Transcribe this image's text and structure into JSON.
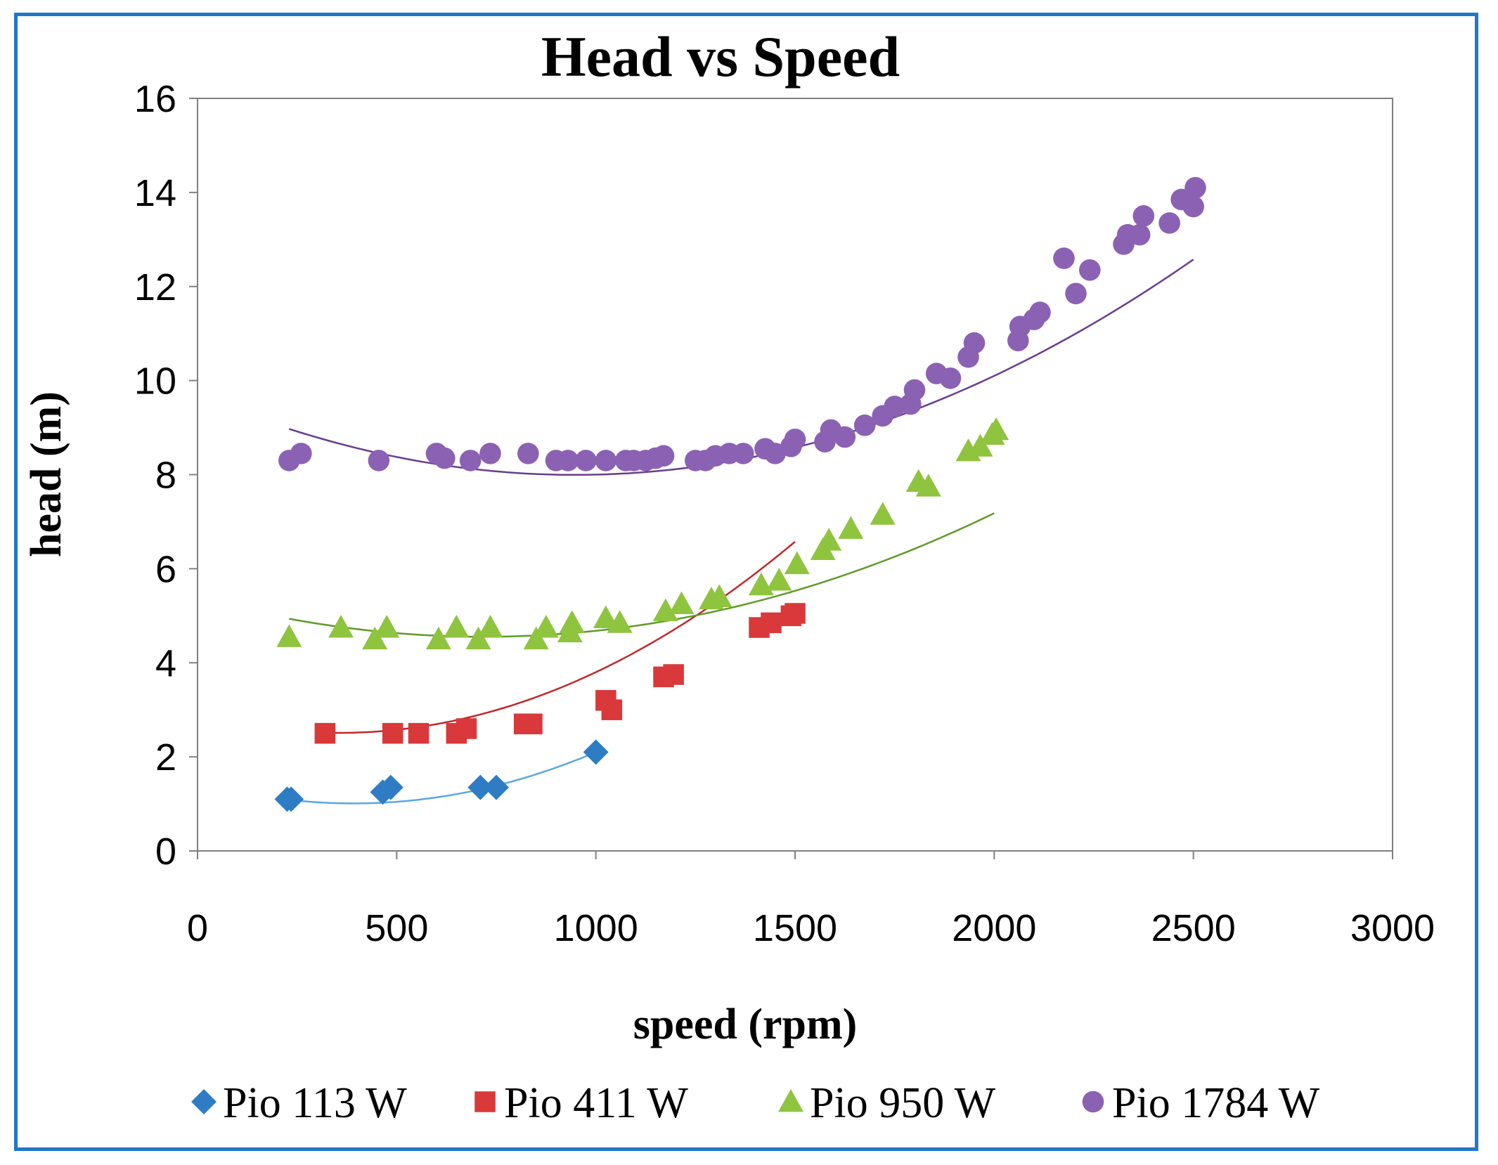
{
  "chart_data": {
    "type": "scatter",
    "title": "Head vs Speed",
    "xlabel": "speed (rpm)",
    "ylabel": "head (m)",
    "xlim": [
      0,
      3000
    ],
    "ylim": [
      0,
      16
    ],
    "xticks": [
      0,
      500,
      1000,
      1500,
      2000,
      2500,
      3000
    ],
    "yticks": [
      0,
      2,
      4,
      6,
      8,
      10,
      12,
      14,
      16
    ],
    "grid": false,
    "legend_position": "bottom",
    "series": [
      {
        "name": "Pio 113 W",
        "marker": "diamond",
        "color": "#2e7dc4",
        "trend_color": "#5aa7e0",
        "x": [
          225,
          235,
          465,
          485,
          710,
          750,
          1000
        ],
        "y": [
          1.1,
          1.1,
          1.25,
          1.35,
          1.35,
          1.35,
          2.1
        ],
        "trend_x": [
          230,
          1000
        ],
        "trend_coeffs": [
          1.46,
          -0.0023,
          2.94e-06
        ]
      },
      {
        "name": "Pio 411 W",
        "marker": "square",
        "color": "#d9393a",
        "trend_color": "#c0282a",
        "x": [
          320,
          490,
          555,
          650,
          675,
          820,
          840,
          1025,
          1040,
          1170,
          1195,
          1410,
          1440,
          1490,
          1500
        ],
        "y": [
          2.5,
          2.5,
          2.5,
          2.5,
          2.6,
          2.7,
          2.7,
          3.2,
          3.0,
          3.7,
          3.75,
          4.75,
          4.85,
          5.0,
          5.05
        ],
        "trend_x": [
          320,
          1500
        ],
        "trend_coeffs": [
          2.9,
          -0.0022,
          3.1e-06
        ]
      },
      {
        "name": "Pio 950 W",
        "marker": "triangle",
        "color": "#8fc43f",
        "trend_color": "#5f9a2a",
        "x": [
          230,
          360,
          445,
          475,
          605,
          650,
          705,
          735,
          850,
          875,
          935,
          940,
          1025,
          1060,
          1175,
          1215,
          1290,
          1310,
          1415,
          1460,
          1505,
          1570,
          1585,
          1640,
          1720,
          1810,
          1835,
          1935,
          1965,
          1995,
          2005
        ],
        "y": [
          4.55,
          4.75,
          4.5,
          4.75,
          4.5,
          4.75,
          4.5,
          4.75,
          4.5,
          4.75,
          4.65,
          4.85,
          4.95,
          4.85,
          5.1,
          5.25,
          5.35,
          5.4,
          5.65,
          5.75,
          6.1,
          6.4,
          6.6,
          6.85,
          7.15,
          7.85,
          7.75,
          8.5,
          8.6,
          8.85,
          8.95
        ],
        "trend_x": [
          230,
          2000
        ],
        "trend_coeffs": [
          5.38,
          -0.0023,
          1.6e-06
        ]
      },
      {
        "name": "Pio 1784 W",
        "marker": "circle",
        "color": "#8b61b4",
        "trend_color": "#6a3d8f",
        "x": [
          230,
          260,
          455,
          600,
          620,
          685,
          735,
          830,
          900,
          930,
          975,
          1025,
          1075,
          1095,
          1125,
          1150,
          1170,
          1250,
          1275,
          1300,
          1335,
          1370,
          1425,
          1450,
          1490,
          1500,
          1575,
          1590,
          1625,
          1675,
          1720,
          1750,
          1790,
          1800,
          1855,
          1890,
          1935,
          1950,
          2060,
          2065,
          2100,
          2115,
          2175,
          2205,
          2240,
          2325,
          2335,
          2365,
          2375,
          2440,
          2470,
          2500,
          2505
        ],
        "y": [
          8.3,
          8.45,
          8.3,
          8.45,
          8.35,
          8.3,
          8.45,
          8.45,
          8.3,
          8.3,
          8.3,
          8.3,
          8.3,
          8.3,
          8.3,
          8.35,
          8.4,
          8.3,
          8.3,
          8.4,
          8.45,
          8.45,
          8.55,
          8.45,
          8.6,
          8.75,
          8.7,
          8.95,
          8.8,
          9.05,
          9.25,
          9.45,
          9.5,
          9.8,
          10.15,
          10.05,
          10.5,
          10.8,
          10.85,
          11.15,
          11.3,
          11.45,
          12.6,
          11.85,
          12.35,
          12.9,
          13.1,
          13.1,
          13.5,
          13.35,
          13.85,
          13.7,
          14.1
        ],
        "trend_x": [
          230,
          2500
        ],
        "trend_coeffs": [
          9.7,
          -0.0036,
          1.9e-06
        ]
      }
    ]
  }
}
